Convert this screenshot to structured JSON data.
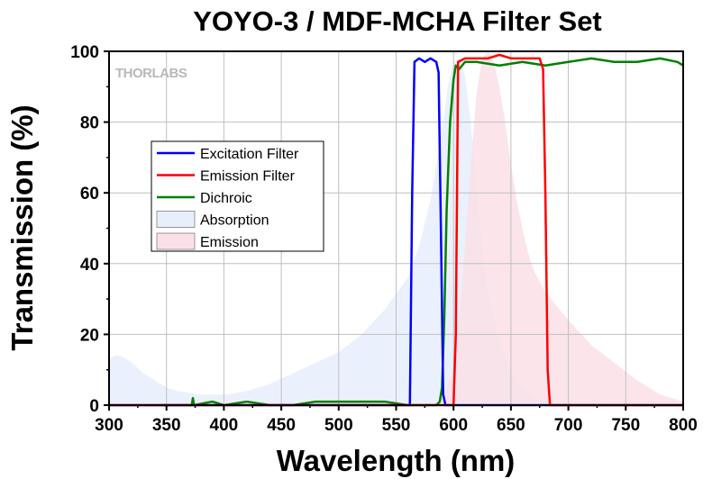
{
  "chart_data": {
    "type": "line",
    "title": "YOYO-3 / MDF-MCHA Filter Set",
    "xlabel": "Wavelength (nm)",
    "ylabel": "Transmission (%)",
    "xlim": [
      300,
      800
    ],
    "ylim": [
      0,
      100
    ],
    "xticks": [
      300,
      350,
      400,
      450,
      500,
      550,
      600,
      650,
      700,
      750,
      800
    ],
    "yticks": [
      0,
      20,
      40,
      60,
      80,
      100
    ],
    "grid": true,
    "legend_position": "upper-left",
    "brand_logo": "THORLABS",
    "series": [
      {
        "name": "Excitation Filter",
        "kind": "line",
        "color": "#0000ff",
        "x": [
          300,
          555,
          562,
          564,
          566,
          570,
          575,
          580,
          585,
          587,
          589,
          591,
          593,
          800
        ],
        "y": [
          0,
          0,
          0,
          60,
          97,
          98,
          97,
          98,
          97,
          94,
          50,
          3,
          0,
          0
        ]
      },
      {
        "name": "Emission Filter",
        "kind": "line",
        "color": "#ff0000",
        "x": [
          300,
          598,
          600,
          602,
          604,
          610,
          620,
          630,
          640,
          650,
          660,
          670,
          675,
          678,
          680,
          682,
          684,
          800
        ],
        "y": [
          0,
          0,
          0,
          20,
          97,
          98,
          98,
          98,
          99,
          98,
          98,
          98,
          98,
          95,
          60,
          10,
          0,
          0
        ]
      },
      {
        "name": "Dichroic",
        "kind": "line",
        "color": "#008000",
        "x": [
          345,
          360,
          372,
          373,
          374,
          390,
          400,
          420,
          440,
          460,
          480,
          500,
          520,
          540,
          560,
          575,
          585,
          588,
          590,
          592,
          594,
          597,
          600,
          602,
          605,
          610,
          620,
          640,
          660,
          680,
          700,
          720,
          740,
          760,
          780,
          795,
          800
        ],
        "y": [
          0,
          0,
          0,
          2,
          0,
          1,
          0,
          1,
          0,
          0,
          1,
          1,
          1,
          1,
          0,
          0,
          0,
          1,
          5,
          25,
          55,
          80,
          92,
          96,
          95,
          97,
          97,
          96,
          97,
          96,
          97,
          98,
          97,
          97,
          98,
          97,
          96
        ]
      },
      {
        "name": "Absorption",
        "kind": "area",
        "color": "#e8effb",
        "x": [
          300,
          305,
          310,
          315,
          320,
          330,
          340,
          350,
          360,
          380,
          400,
          420,
          440,
          460,
          480,
          500,
          520,
          540,
          560,
          570,
          580,
          590,
          595,
          600,
          605,
          610,
          615,
          620,
          625,
          630,
          640,
          650,
          660,
          670,
          680,
          700
        ],
        "y": [
          13,
          14,
          14,
          13,
          12,
          9,
          7,
          5,
          4,
          3,
          3,
          4,
          6,
          9,
          12,
          15,
          20,
          27,
          36,
          45,
          58,
          78,
          90,
          97,
          98,
          93,
          80,
          62,
          45,
          32,
          18,
          10,
          5,
          2,
          1,
          0
        ]
      },
      {
        "name": "Emission",
        "kind": "area",
        "color": "#fae1e8",
        "x": [
          580,
          590,
          600,
          605,
          610,
          615,
          620,
          625,
          630,
          635,
          640,
          645,
          650,
          655,
          660,
          665,
          670,
          680,
          690,
          700,
          720,
          740,
          760,
          780,
          800
        ],
        "y": [
          0,
          2,
          10,
          25,
          45,
          68,
          88,
          98,
          100,
          97,
          90,
          80,
          68,
          58,
          50,
          43,
          38,
          32,
          28,
          24,
          17,
          12,
          7,
          3,
          1
        ]
      }
    ]
  }
}
